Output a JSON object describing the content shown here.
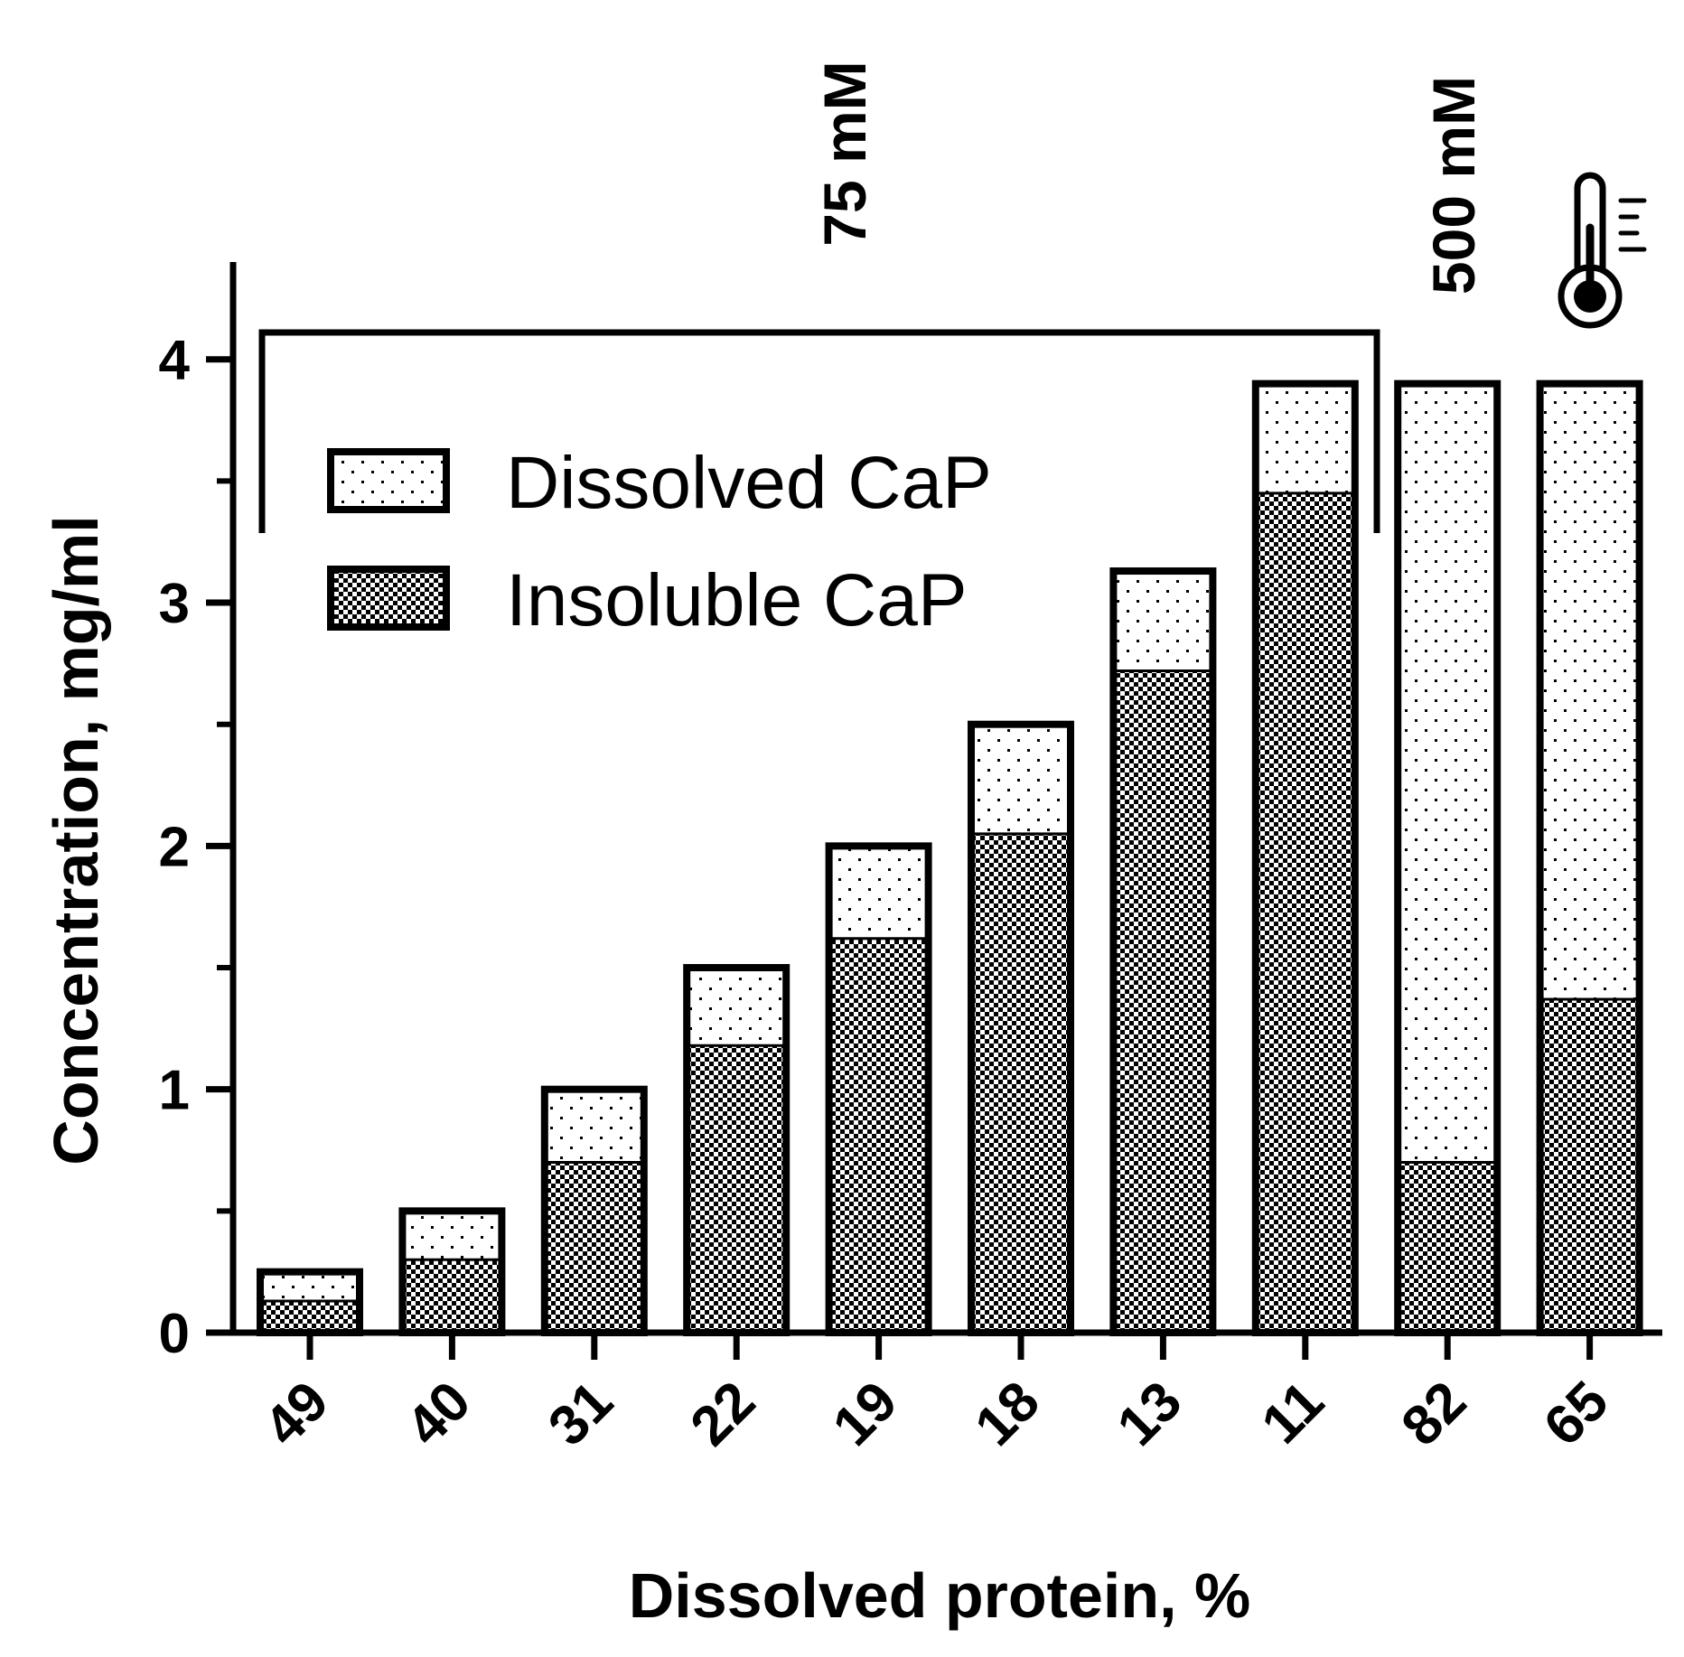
{
  "chart_data": {
    "type": "bar",
    "stacked": true,
    "title": "",
    "xlabel": "Dissolved protein, %",
    "ylabel": "Concentration, mg/ml",
    "ylim": [
      0,
      4.4
    ],
    "yticks": [
      0,
      1,
      2,
      3,
      4
    ],
    "ytick_labels": [
      "0",
      "1",
      "2",
      "3",
      "4"
    ],
    "categories": [
      "49",
      "40",
      "31",
      "22",
      "19",
      "18",
      "13",
      "11",
      "82",
      "65"
    ],
    "series": [
      {
        "name": "Insoluble CaP",
        "pattern": "checkered",
        "values": [
          0.13,
          0.3,
          0.7,
          1.18,
          1.62,
          2.05,
          2.72,
          3.45,
          0.7,
          1.37
        ]
      },
      {
        "name": "Dissolved CaP",
        "pattern": "dotted",
        "values": [
          0.12,
          0.2,
          0.3,
          0.32,
          0.38,
          0.45,
          0.41,
          0.45,
          3.2,
          2.53
        ]
      }
    ],
    "legend": {
      "position": "top-left",
      "entries": [
        "Dissolved CaP",
        "Insoluble CaP"
      ]
    },
    "annotations": [
      {
        "type": "bracket",
        "label": "75 mM",
        "spans_categories": [
          "49",
          "40",
          "31",
          "22",
          "19",
          "18",
          "13",
          "11"
        ]
      },
      {
        "type": "label",
        "label": "500 mM",
        "category": "82"
      },
      {
        "type": "icon",
        "icon": "thermometer-icon",
        "category": "65"
      }
    ],
    "grid": false
  },
  "colors": {
    "stroke": "#000000",
    "background": "#ffffff"
  }
}
